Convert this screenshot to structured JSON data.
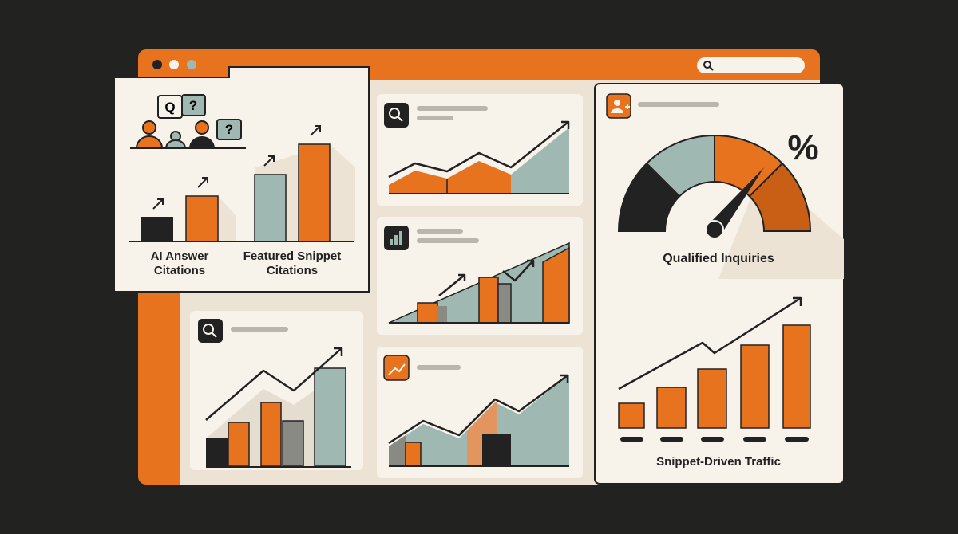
{
  "panels": {
    "citations": {
      "bubbles": [
        "Q",
        "?",
        "?"
      ],
      "labels": [
        "AI Answer Citations",
        "Featured Snippet Citations"
      ]
    },
    "inquiries": {
      "symbol": "%",
      "label": "Qualified Inquiries"
    },
    "traffic": {
      "label": "Snippet-Driven Traffic"
    }
  }
}
